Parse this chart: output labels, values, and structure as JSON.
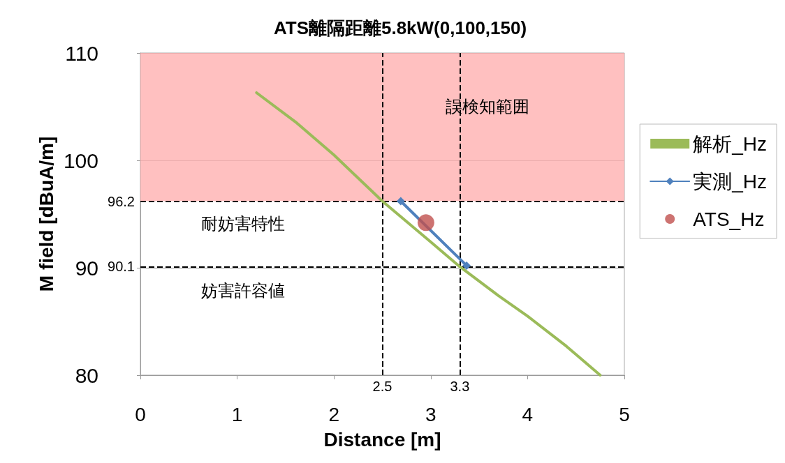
{
  "chart_data": {
    "type": "line",
    "title": "ATS離隔距離5.8kW(0,100,150)",
    "xlabel": "Distance [m]",
    "ylabel": "M field [dBuA/m]",
    "xlim": [
      0,
      5
    ],
    "xticks": [
      0,
      1,
      2,
      3,
      4,
      5
    ],
    "ylim": [
      80,
      110
    ],
    "yticks": [
      80,
      90,
      100,
      110
    ],
    "series": [
      {
        "name": "解析_Hz",
        "color": "#9bbb59",
        "marker": "none",
        "x": [
          1.2,
          1.6,
          2.0,
          2.5,
          3.0,
          3.3,
          3.7,
          4.0,
          4.4,
          4.75
        ],
        "values": [
          106.3,
          103.6,
          100.5,
          96.2,
          92.4,
          90.1,
          87.4,
          85.5,
          82.7,
          80
        ]
      },
      {
        "name": "実測_Hz",
        "color": "#4f81bd",
        "marker": "diamond",
        "x": [
          2.69,
          3.37
        ],
        "values": [
          96.2,
          90.2
        ]
      },
      {
        "name": "ATS_Hz",
        "type": "scatter",
        "color": "#c0504d",
        "marker": "circle",
        "x": [
          2.95
        ],
        "values": [
          94.2
        ]
      }
    ],
    "bands": [
      {
        "axis": "y",
        "from": 96.2,
        "to": 110,
        "label": "誤検知範囲",
        "color": "#ffb0b0"
      }
    ],
    "ref_lines": [
      {
        "axis": "y",
        "value": 96.2,
        "label": "96.2",
        "line_style": "dashed",
        "color": "#000000"
      },
      {
        "axis": "y",
        "value": 90.1,
        "label": "90.1",
        "line_style": "dashed",
        "color": "#000000"
      },
      {
        "axis": "x",
        "value": 2.5,
        "label": "2.5",
        "line_style": "dashed",
        "color": "#000000"
      },
      {
        "axis": "x",
        "value": 3.3,
        "label": "3.3",
        "line_style": "dashed",
        "color": "#000000"
      }
    ],
    "annotations": [
      "耐妨害特性",
      "妨害許容値"
    ],
    "grid": "y",
    "legend": "right"
  }
}
